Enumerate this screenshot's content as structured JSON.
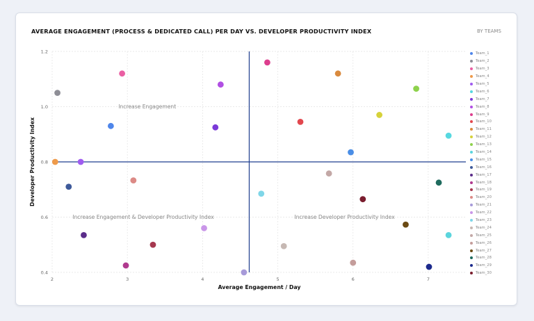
{
  "header": {
    "title": "AVERAGE ENGAGEMENT (PROCESS & DEDICATED CALL) PER DAY VS. DEVELOPER PRODUCTIVITY INDEX",
    "subtitle": "BY TEAMS"
  },
  "chart_data": {
    "type": "scatter",
    "xlabel": "Average Engagement / Day",
    "ylabel": "Developer Productivity Index",
    "xlim": [
      2,
      7.5
    ],
    "ylim": [
      0.4,
      1.2
    ],
    "x_ticks": [
      "2",
      "3",
      "4",
      "5",
      "6",
      "7"
    ],
    "x_tick_values": [
      2,
      3,
      4,
      5,
      6,
      7
    ],
    "y_ticks": [
      "0.4",
      "0.6",
      "0.8",
      "1.0",
      "1.2"
    ],
    "y_tick_values": [
      0.4,
      0.6,
      0.8,
      1.0,
      1.2
    ],
    "grid": true,
    "legend_position": "right",
    "reference_lines": {
      "x": 4.62,
      "y": 0.8
    },
    "annotations": [
      {
        "text": "Increase Engagement",
        "x": 2.88,
        "y": 1.0
      },
      {
        "text": "Increase Engagement & Developer Productivity Index",
        "x": 2.27,
        "y": 0.6
      },
      {
        "text": "Increase Developer Productivity Index",
        "x": 5.22,
        "y": 0.6
      }
    ],
    "series": [
      {
        "name": "Team_1",
        "color": "#4f86ea",
        "x": 2.78,
        "y": 0.93
      },
      {
        "name": "Team_2",
        "color": "#8e8e96",
        "x": 2.07,
        "y": 1.05
      },
      {
        "name": "Team_3",
        "color": "#ea5fa3",
        "x": 2.93,
        "y": 1.12
      },
      {
        "name": "Team_4",
        "color": "#ee9a4a",
        "x": 2.04,
        "y": 0.8
      },
      {
        "name": "Team_5",
        "color": "#a05cf0",
        "x": 2.38,
        "y": 0.8
      },
      {
        "name": "Team_6",
        "color": "#57d8e0",
        "x": 7.27,
        "y": 0.895
      },
      {
        "name": "Team_7",
        "color": "#7b3ad8",
        "x": 4.17,
        "y": 0.925
      },
      {
        "name": "Team_8",
        "color": "#b14fe3",
        "x": 4.24,
        "y": 1.08
      },
      {
        "name": "Team_9",
        "color": "#dd3e8e",
        "x": 4.86,
        "y": 1.16
      },
      {
        "name": "Team_10",
        "color": "#e2474e",
        "x": 5.3,
        "y": 0.945
      },
      {
        "name": "Team_11",
        "color": "#d98a3e",
        "x": 5.8,
        "y": 1.12
      },
      {
        "name": "Team_12",
        "color": "#d6d23a",
        "x": 6.35,
        "y": 0.97
      },
      {
        "name": "Team_13",
        "color": "#8ed24c",
        "x": 6.84,
        "y": 1.065
      },
      {
        "name": "Team_14",
        "color": "#5bd5dd",
        "x": 7.27,
        "y": 0.535
      },
      {
        "name": "Team_15",
        "color": "#4a8ee6",
        "x": 5.97,
        "y": 0.835
      },
      {
        "name": "Team_16",
        "color": "#3e5a9a",
        "x": 2.22,
        "y": 0.71
      },
      {
        "name": "Team_17",
        "color": "#5b2d8a",
        "x": 2.42,
        "y": 0.535
      },
      {
        "name": "Team_18",
        "color": "#b03a8e",
        "x": 2.98,
        "y": 0.425
      },
      {
        "name": "Team_19",
        "color": "#a6384f",
        "x": 3.34,
        "y": 0.5
      },
      {
        "name": "Team_20",
        "color": "#dc8a86",
        "x": 3.08,
        "y": 0.733
      },
      {
        "name": "Team_21",
        "color": "#a79ad9",
        "x": 4.55,
        "y": 0.4
      },
      {
        "name": "Team_22",
        "color": "#c996e8",
        "x": 4.02,
        "y": 0.56
      },
      {
        "name": "Team_23",
        "color": "#7fd6e8",
        "x": 4.78,
        "y": 0.685
      },
      {
        "name": "Team_24",
        "color": "#c6b8b3",
        "x": 5.08,
        "y": 0.495
      },
      {
        "name": "Team_25",
        "color": "#c3a8a6",
        "x": 5.68,
        "y": 0.758
      },
      {
        "name": "Team_26",
        "color": "#c49d9b",
        "x": 6.0,
        "y": 0.435
      },
      {
        "name": "Team_27",
        "color": "#6b4a13",
        "x": 6.7,
        "y": 0.573
      },
      {
        "name": "Team_28",
        "color": "#1f6b5e",
        "x": 7.14,
        "y": 0.725
      },
      {
        "name": "Team_29",
        "color": "#1c2a8c",
        "x": 7.01,
        "y": 0.42
      },
      {
        "name": "Team_30",
        "color": "#7a1d2e",
        "x": 6.13,
        "y": 0.665
      }
    ]
  }
}
